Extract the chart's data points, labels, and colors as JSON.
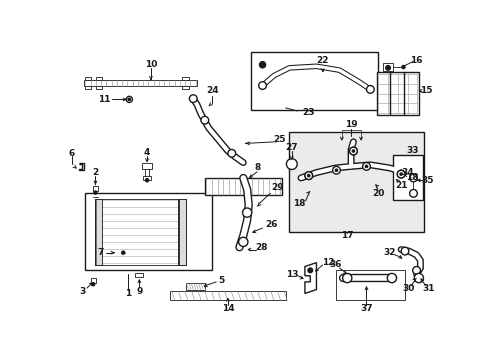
{
  "bg_color": "#ffffff",
  "fig_width": 4.89,
  "fig_height": 3.6,
  "dpi": 100,
  "line_color": "#1a1a1a",
  "hatch_color": "#555555"
}
